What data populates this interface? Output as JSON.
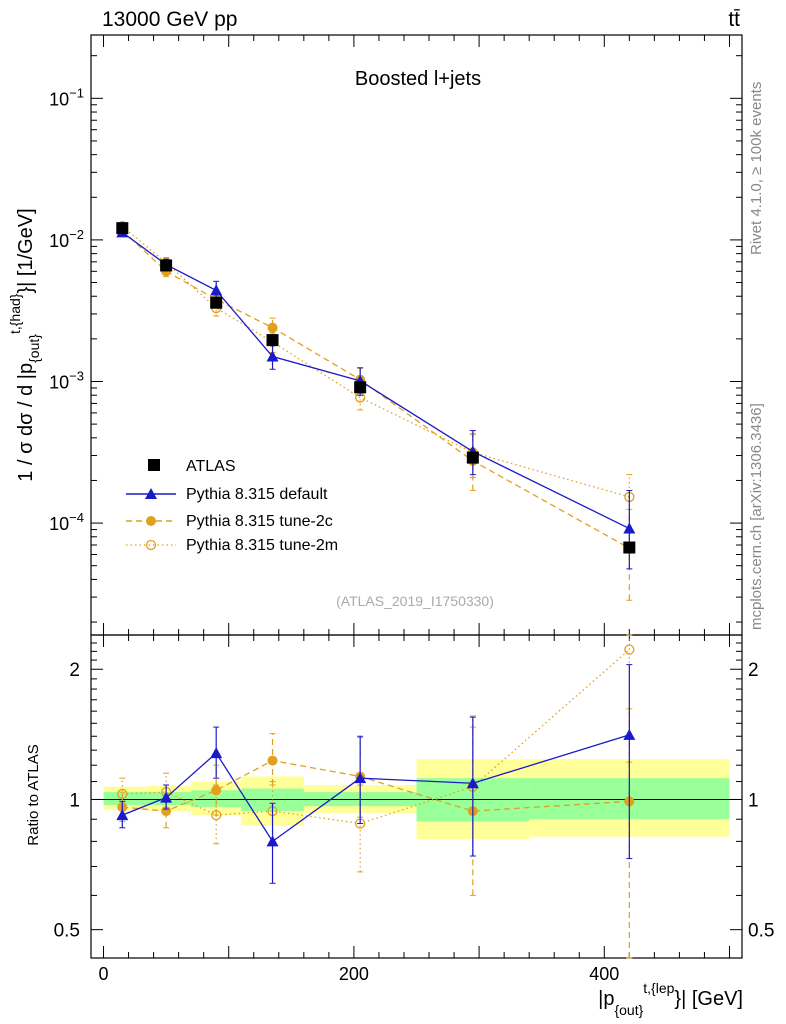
{
  "header": {
    "energy_label": "13000 GeV pp",
    "process_label": "tt̄"
  },
  "side_labels": {
    "rivet": "Rivet 4.1.0, ≥ 100k events",
    "mcplots": "mcplots.cern.ch [arXiv:1306.3436]"
  },
  "chart_data": {
    "type": "scatter",
    "title": "Boosted l+jets",
    "analysis_id": "(ATLAS_2019_I1750330)",
    "xlim": [
      -10,
      510
    ],
    "xticks": [
      0,
      200,
      400
    ],
    "xtick_labels": [
      "0",
      "200",
      "400"
    ],
    "main": {
      "yscale": "log",
      "ylim": [
        1.62e-05,
        0.28
      ],
      "yticks": [
        0.0001,
        0.001,
        0.01,
        0.1
      ],
      "ylabel": "1 / σ dσ / d |p_{out}^{t,{had}}| [1/GeV]",
      "ylabel_parts": {
        "main": "1 / σ dσ / d |p",
        "sub": "{out}",
        "sup": "t,{had}",
        "tail": "}| [1/GeV]"
      },
      "ytick_labels": [
        {
          "base": "10",
          "exp": "−4"
        },
        {
          "base": "10",
          "exp": "−3"
        },
        {
          "base": "10",
          "exp": "−2"
        },
        {
          "base": "10",
          "exp": "−1"
        }
      ]
    },
    "ratio": {
      "ylabel": "Ratio to ATLAS",
      "ylim": [
        0.43,
        2.4
      ],
      "yticks": [
        0.5,
        1,
        2
      ],
      "ytick_labels": [
        "0.5",
        "1",
        "2"
      ],
      "reference_line": 1,
      "band_bins": [
        {
          "x": [
            0,
            35
          ],
          "yellow": [
            0.945,
            1.07
          ],
          "green": [
            0.97,
            1.04
          ]
        },
        {
          "x": [
            35,
            70
          ],
          "yellow": [
            0.94,
            1.075
          ],
          "green": [
            0.97,
            1.04
          ]
        },
        {
          "x": [
            70,
            110
          ],
          "yellow": [
            0.92,
            1.1
          ],
          "green": [
            0.96,
            1.05
          ]
        },
        {
          "x": [
            110,
            160
          ],
          "yellow": [
            0.87,
            1.13
          ],
          "green": [
            0.94,
            1.06
          ]
        },
        {
          "x": [
            160,
            250
          ],
          "yellow": [
            0.93,
            1.08
          ],
          "green": [
            0.965,
            1.04
          ]
        },
        {
          "x": [
            250,
            340
          ],
          "yellow": [
            0.81,
            1.24
          ],
          "green": [
            0.89,
            1.12
          ]
        },
        {
          "x": [
            340,
            500
          ],
          "yellow": [
            0.82,
            1.24
          ],
          "green": [
            0.9,
            1.12
          ]
        }
      ]
    },
    "xlabel": "|p_{out}^{t,{lep}}| [GeV]",
    "xlabel_parts": {
      "main": "|p",
      "sub": "{out}",
      "sup": "t,{lep",
      "tail": "}| [GeV]"
    },
    "series": [
      {
        "name": "ATLAS",
        "color": "#000000",
        "marker": "square",
        "line": "none",
        "x": [
          15,
          50,
          90,
          135,
          205,
          295,
          420
        ],
        "y": [
          0.0121,
          0.0066,
          0.0036,
          0.00196,
          0.00091,
          0.00029,
          6.72e-05
        ],
        "yerr_lo": [
          0.0121,
          0.0066,
          0.0036,
          0.00196,
          0.00091,
          0.00029,
          6.72e-05
        ],
        "yerr_hi": [
          0.0121,
          0.0066,
          0.0036,
          0.00196,
          0.00091,
          0.00029,
          6.72e-05
        ]
      },
      {
        "name": "Pythia 8.315 default",
        "color": "#1a1ac8",
        "marker": "triangle",
        "line": "solid",
        "x": [
          15,
          50,
          90,
          135,
          205,
          295,
          420
        ],
        "y": [
          0.0113,
          0.0067,
          0.0044,
          0.0015,
          0.00101,
          0.00032,
          9.15e-05
        ],
        "yerr_lo": [
          0.0106,
          0.0062,
          0.0038,
          0.00122,
          0.0008,
          0.00022,
          4.75e-05
        ],
        "yerr_hi": [
          0.012,
          0.0073,
          0.0051,
          0.00185,
          0.00125,
          0.00045,
          0.00017
        ],
        "ratio": [
          0.92,
          1.01,
          1.28,
          0.8,
          1.12,
          1.09,
          1.41
        ],
        "ratio_lo": [
          0.86,
          0.95,
          1.12,
          0.64,
          0.88,
          0.74,
          0.73
        ],
        "ratio_hi": [
          0.99,
          1.08,
          1.47,
          0.98,
          1.4,
          1.55,
          2.05
        ]
      },
      {
        "name": "Pythia 8.315 tune-2c",
        "color": "#e0a020",
        "marker": "circle-filled",
        "line": "dashed",
        "x": [
          15,
          50,
          90,
          135,
          205,
          295,
          420
        ],
        "y": [
          0.0117,
          0.006,
          0.0038,
          0.0024,
          0.00103,
          0.000275,
          6.65e-05
        ],
        "yerr_lo": [
          0.011,
          0.0055,
          0.0033,
          0.0021,
          0.00083,
          0.00017,
          2.85e-05
        ],
        "yerr_hi": [
          0.0125,
          0.0066,
          0.0043,
          0.0028,
          0.00124,
          0.00042,
          0.000125
        ],
        "ratio": [
          0.96,
          0.94,
          1.05,
          1.23,
          1.13,
          0.94,
          0.99
        ],
        "ratio_lo": [
          0.89,
          0.86,
          0.92,
          1.08,
          0.91,
          0.6,
          0.37
        ],
        "ratio_hi": [
          1.04,
          1.03,
          1.2,
          1.42,
          1.39,
          1.47,
          1.62
        ]
      },
      {
        "name": "Pythia 8.315 tune-2m",
        "color": "#e0a020",
        "marker": "circle-open",
        "line": "dotted",
        "x": [
          15,
          50,
          90,
          135,
          205,
          295,
          420
        ],
        "y": [
          0.0125,
          0.0069,
          0.0033,
          0.0019,
          0.00077,
          0.000315,
          0.000153
        ],
        "yerr_lo": [
          0.0118,
          0.0063,
          0.0029,
          0.0016,
          0.00063,
          0.00021,
          8.5e-05
        ],
        "yerr_hi": [
          0.0132,
          0.0075,
          0.0037,
          0.0022,
          0.00093,
          0.00043,
          0.00022
        ],
        "ratio": [
          1.03,
          1.04,
          0.92,
          0.94,
          0.88,
          1.07,
          2.22
        ],
        "ratio_lo": [
          0.95,
          0.95,
          0.79,
          0.8,
          0.68,
          0.74,
          1.22
        ],
        "ratio_hi": [
          1.12,
          1.15,
          1.08,
          1.1,
          1.08,
          1.56,
          2.4
        ]
      }
    ]
  }
}
